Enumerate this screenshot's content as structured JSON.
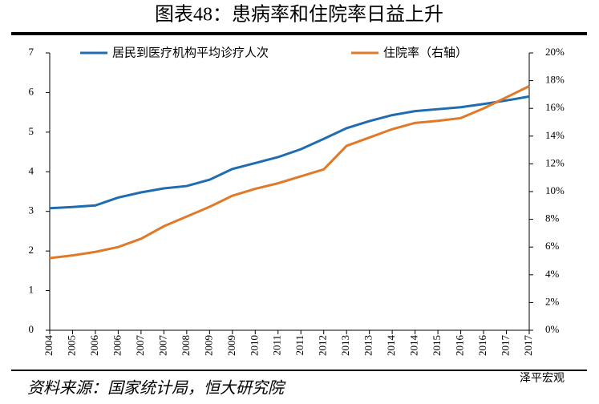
{
  "title": "图表48：患病率和住院率日益上升",
  "source": "资料来源：国家统计局，恒大研究院",
  "watermark": "泽平宏观",
  "chart_data": {
    "type": "line",
    "categories": [
      "2004",
      "2005",
      "2006",
      "2006",
      "2007",
      "2007",
      "2008",
      "2009",
      "2009",
      "2010",
      "2011",
      "2011",
      "2012",
      "2013",
      "2013",
      "2014",
      "2014",
      "2015",
      "2016",
      "2016",
      "2017",
      "2017"
    ],
    "series": [
      {
        "name": "居民到医疗机构平均诊疗人次",
        "color": "#1f6cb0",
        "values": [
          3.08,
          3.11,
          3.15,
          3.35,
          3.48,
          3.58,
          3.64,
          3.8,
          4.07,
          4.22,
          4.37,
          4.57,
          4.83,
          5.1,
          5.28,
          5.43,
          5.53,
          5.58,
          5.63,
          5.71,
          5.8,
          5.9
        ]
      },
      {
        "name": "住院率（右轴）",
        "color": "#e07a2a",
        "axis": "y2",
        "values": [
          5.2,
          5.4,
          5.65,
          6.0,
          6.6,
          7.5,
          8.2,
          8.9,
          9.7,
          10.2,
          10.6,
          11.1,
          11.6,
          13.3,
          13.9,
          14.5,
          14.95,
          15.1,
          15.3,
          16.0,
          16.8,
          17.6
        ]
      }
    ],
    "ylim": [
      0,
      7
    ],
    "yticks": [
      0,
      1,
      2,
      3,
      4,
      5,
      6,
      7
    ],
    "y2lim": [
      0,
      20
    ],
    "y2ticks": [
      {
        "value": 0,
        "label": "0%"
      },
      {
        "value": 2,
        "label": "2%"
      },
      {
        "value": 4,
        "label": "4%"
      },
      {
        "value": 6,
        "label": "6%"
      },
      {
        "value": 8,
        "label": "8%"
      },
      {
        "value": 10,
        "label": "10%"
      },
      {
        "value": 12,
        "label": "12%"
      },
      {
        "value": 14,
        "label": "14%"
      },
      {
        "value": 16,
        "label": "16%"
      },
      {
        "value": 18,
        "label": "18%"
      },
      {
        "value": 20,
        "label": "20%"
      }
    ],
    "legend": "top"
  }
}
